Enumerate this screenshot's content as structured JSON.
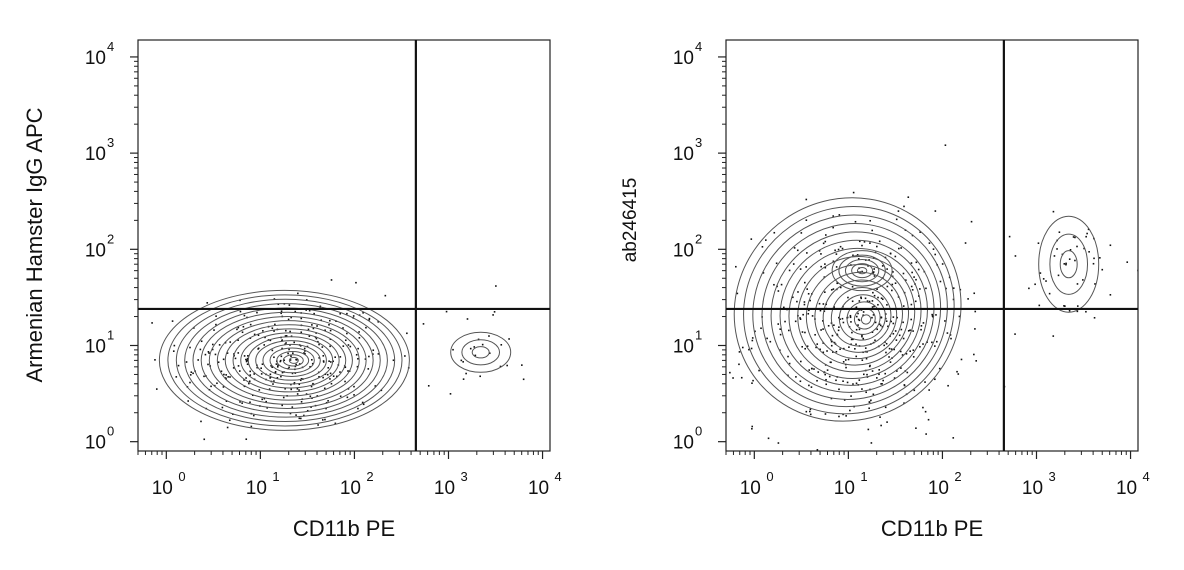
{
  "chart_data": [
    {
      "type": "contour",
      "panel": "left",
      "xlabel": "CD11b PE",
      "ylabel": "Armenian Hamster IgG APC",
      "x_scale": "log",
      "y_scale": "log",
      "xlim": [
        0.5,
        12000
      ],
      "ylim": [
        0.8,
        15000
      ],
      "x_ticks": [
        {
          "base": "10",
          "exp": "0",
          "value": 1
        },
        {
          "base": "10",
          "exp": "1",
          "value": 10
        },
        {
          "base": "10",
          "exp": "2",
          "value": 100
        },
        {
          "base": "10",
          "exp": "3",
          "value": 1000
        },
        {
          "base": "10",
          "exp": "4",
          "value": 10000
        }
      ],
      "y_ticks": [
        {
          "base": "10",
          "exp": "0",
          "value": 1
        },
        {
          "base": "10",
          "exp": "1",
          "value": 10
        },
        {
          "base": "10",
          "exp": "2",
          "value": 100
        },
        {
          "base": "10",
          "exp": "3",
          "value": 1000
        },
        {
          "base": "10",
          "exp": "4",
          "value": 10000
        }
      ],
      "gates": {
        "x": 450,
        "y": 24
      },
      "populations": [
        {
          "x": 18,
          "y": 7,
          "levels": 18
        },
        {
          "x": 2200,
          "y": 8.5,
          "levels": 3
        }
      ]
    },
    {
      "type": "contour",
      "panel": "right",
      "xlabel": "CD11b PE",
      "ylabel": "ab246415",
      "x_scale": "log",
      "y_scale": "log",
      "xlim": [
        0.5,
        12000
      ],
      "ylim": [
        0.8,
        15000
      ],
      "x_ticks": [
        {
          "base": "10",
          "exp": "0",
          "value": 1
        },
        {
          "base": "10",
          "exp": "1",
          "value": 10
        },
        {
          "base": "10",
          "exp": "2",
          "value": 100
        },
        {
          "base": "10",
          "exp": "3",
          "value": 1000
        },
        {
          "base": "10",
          "exp": "4",
          "value": 10000
        }
      ],
      "y_ticks": [
        {
          "base": "10",
          "exp": "0",
          "value": 1
        },
        {
          "base": "10",
          "exp": "1",
          "value": 10
        },
        {
          "base": "10",
          "exp": "2",
          "value": 100
        },
        {
          "base": "10",
          "exp": "3",
          "value": 1000
        },
        {
          "base": "10",
          "exp": "4",
          "value": 10000
        }
      ],
      "gates": {
        "x": 450,
        "y": 24
      },
      "populations": [
        {
          "x": 13,
          "y": 16,
          "levels": 16
        },
        {
          "x": 14,
          "y": 60,
          "levels": 5
        },
        {
          "x": 2200,
          "y": 70,
          "levels": 3
        }
      ]
    }
  ]
}
